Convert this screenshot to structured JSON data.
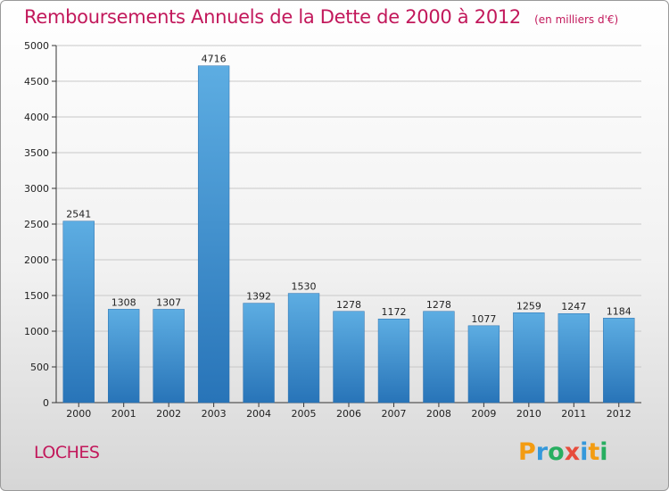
{
  "title": "Remboursements Annuels de la Dette de 2000 à 2012",
  "subtitle": "(en milliers d'€)",
  "city": "LOCHES",
  "logo": {
    "text": "Proxiti",
    "letters": [
      {
        "ch": "P",
        "color": "#f39c12"
      },
      {
        "ch": "r",
        "color": "#3498db"
      },
      {
        "ch": "o",
        "color": "#27ae60"
      },
      {
        "ch": "x",
        "color": "#e74c3c"
      },
      {
        "ch": "i",
        "color": "#3498db"
      },
      {
        "ch": "t",
        "color": "#f39c12"
      },
      {
        "ch": "i",
        "color": "#27ae60"
      }
    ]
  },
  "colors": {
    "bar_top": "#5dade2",
    "bar_bottom": "#2874b8",
    "accent": "#c2185b"
  },
  "chart_data": {
    "type": "bar",
    "title": "Remboursements Annuels de la Dette de 2000 à 2012",
    "subtitle": "(en milliers d'€)",
    "categories": [
      "2000",
      "2001",
      "2002",
      "2003",
      "2004",
      "2005",
      "2006",
      "2007",
      "2008",
      "2009",
      "2010",
      "2011",
      "2012"
    ],
    "values": [
      2541,
      1308,
      1307,
      4716,
      1392,
      1530,
      1278,
      1172,
      1278,
      1077,
      1259,
      1247,
      1184
    ],
    "ylim": [
      0,
      5000
    ],
    "yticks": [
      0,
      500,
      1000,
      1500,
      2000,
      2500,
      3000,
      3500,
      4000,
      4500,
      5000
    ],
    "grid": true
  }
}
